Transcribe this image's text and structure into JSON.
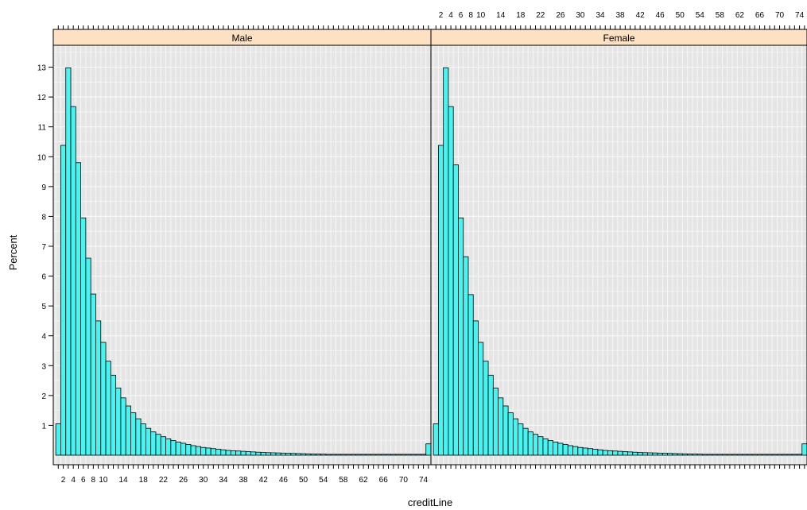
{
  "chart_data": {
    "type": "bar",
    "title": "",
    "xlabel": "creditLine",
    "ylabel": "Percent",
    "ylim": [
      0,
      13.6
    ],
    "xlim": [
      0,
      75.5
    ],
    "grid": true,
    "bin_start": 0.5,
    "bin_width": 1,
    "x_ticks": [
      "2",
      "4",
      "6",
      "8",
      "10",
      "14",
      "18",
      "22",
      "26",
      "30",
      "34",
      "38",
      "42",
      "46",
      "50",
      "54",
      "58",
      "62",
      "66",
      "70",
      "74"
    ],
    "x_tick_values": [
      2,
      4,
      6,
      8,
      10,
      14,
      18,
      22,
      26,
      30,
      34,
      38,
      42,
      46,
      50,
      54,
      58,
      62,
      66,
      70,
      74
    ],
    "y_ticks": [
      "1",
      "2",
      "3",
      "4",
      "5",
      "6",
      "7",
      "8",
      "9",
      "10",
      "11",
      "12",
      "13"
    ],
    "y_tick_values": [
      1,
      2,
      3,
      4,
      5,
      6,
      7,
      8,
      9,
      10,
      11,
      12,
      13
    ],
    "panels": [
      {
        "name": "Male",
        "values": [
          1.05,
          10.38,
          12.98,
          11.68,
          9.8,
          7.95,
          6.6,
          5.4,
          4.5,
          3.78,
          3.15,
          2.68,
          2.25,
          1.92,
          1.65,
          1.42,
          1.22,
          1.05,
          0.9,
          0.78,
          0.7,
          0.62,
          0.55,
          0.49,
          0.44,
          0.4,
          0.36,
          0.32,
          0.29,
          0.26,
          0.24,
          0.22,
          0.2,
          0.18,
          0.16,
          0.15,
          0.14,
          0.13,
          0.12,
          0.11,
          0.1,
          0.09,
          0.085,
          0.08,
          0.075,
          0.07,
          0.065,
          0.06,
          0.055,
          0.05,
          0.045,
          0.04,
          0.038,
          0.035,
          0.03,
          0.03,
          0.03,
          0.03,
          0.03,
          0.03,
          0.03,
          0.03,
          0.03,
          0.03,
          0.03,
          0.03,
          0.03,
          0.03,
          0.03,
          0.03,
          0.03,
          0.03,
          0.03,
          0.03,
          0.38
        ]
      },
      {
        "name": "Female",
        "values": [
          1.05,
          10.38,
          12.98,
          11.68,
          9.73,
          7.95,
          6.65,
          5.38,
          4.5,
          3.78,
          3.15,
          2.68,
          2.25,
          1.92,
          1.65,
          1.42,
          1.22,
          1.05,
          0.9,
          0.78,
          0.7,
          0.62,
          0.55,
          0.49,
          0.44,
          0.4,
          0.36,
          0.32,
          0.29,
          0.26,
          0.24,
          0.22,
          0.2,
          0.18,
          0.16,
          0.15,
          0.14,
          0.13,
          0.12,
          0.11,
          0.1,
          0.09,
          0.085,
          0.08,
          0.075,
          0.07,
          0.065,
          0.06,
          0.055,
          0.05,
          0.045,
          0.04,
          0.038,
          0.035,
          0.03,
          0.03,
          0.03,
          0.03,
          0.03,
          0.03,
          0.03,
          0.03,
          0.03,
          0.03,
          0.03,
          0.03,
          0.03,
          0.03,
          0.03,
          0.03,
          0.03,
          0.03,
          0.03,
          0.03,
          0.38
        ]
      }
    ],
    "colors": {
      "bar_fill": "#48f3f0",
      "bar_stroke": "#000000",
      "panel_bg": "#e5e5e5",
      "grid": "#f7f7f7",
      "strip_bg": "#fee0c2",
      "frame": "#000000"
    }
  }
}
